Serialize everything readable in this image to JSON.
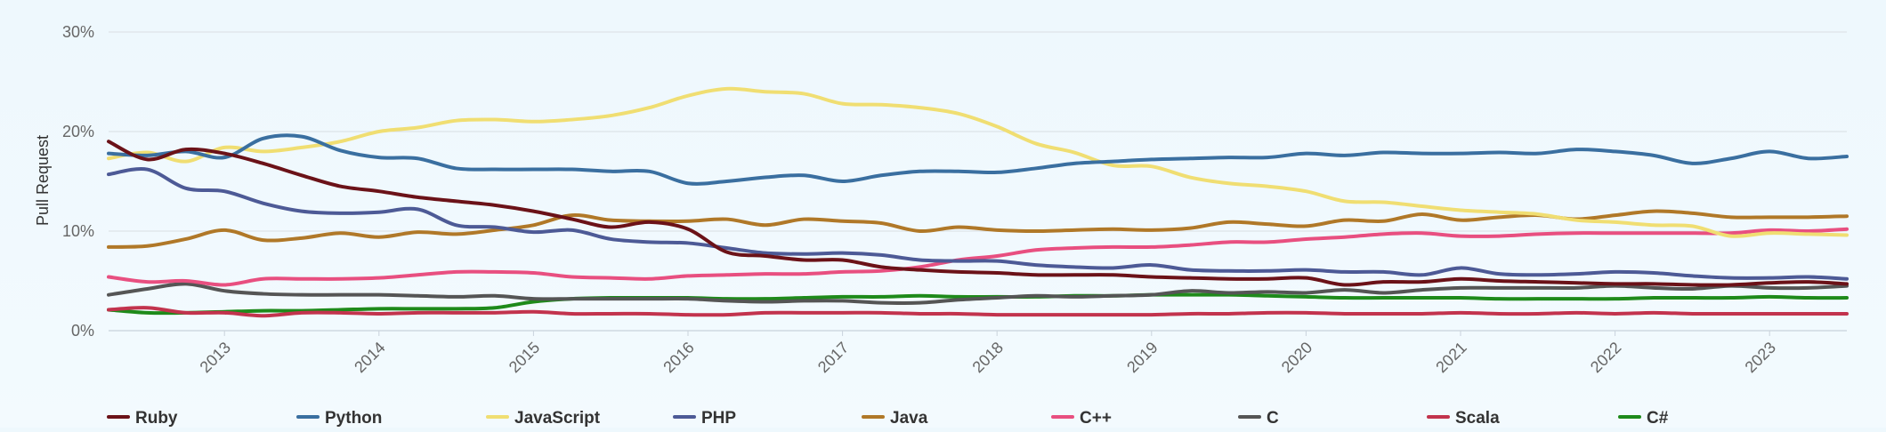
{
  "chart_data": {
    "type": "line",
    "title": "",
    "xlabel": "",
    "ylabel": "Pull Request",
    "ylim": [
      0,
      30
    ],
    "ytick_labels": [
      "0%",
      "10%",
      "20%",
      "30%"
    ],
    "xtick_labels": [
      "2013",
      "2014",
      "2015",
      "2016",
      "2017",
      "2018",
      "2019",
      "2020",
      "2021",
      "2022",
      "2023"
    ],
    "xlim": [
      2012.25,
      2023.5
    ],
    "grid": true,
    "legend_position": "bottom",
    "x": [
      2012.25,
      2012.5,
      2012.75,
      2013.0,
      2013.25,
      2013.5,
      2013.75,
      2014.0,
      2014.25,
      2014.5,
      2014.75,
      2015.0,
      2015.25,
      2015.5,
      2015.75,
      2016.0,
      2016.25,
      2016.5,
      2016.75,
      2017.0,
      2017.25,
      2017.5,
      2017.75,
      2018.0,
      2018.25,
      2018.5,
      2018.75,
      2019.0,
      2019.25,
      2019.5,
      2019.75,
      2020.0,
      2020.25,
      2020.5,
      2020.75,
      2021.0,
      2021.25,
      2021.5,
      2021.75,
      2022.0,
      2022.25,
      2022.5,
      2022.75,
      2023.0,
      2023.25,
      2023.5
    ],
    "series": [
      {
        "name": "Ruby",
        "color": "#6b1218",
        "values": [
          19.0,
          17.2,
          18.2,
          17.8,
          16.8,
          15.6,
          14.5,
          14.0,
          13.4,
          13.0,
          12.6,
          12.0,
          11.2,
          10.4,
          10.9,
          10.2,
          7.9,
          7.5,
          7.1,
          7.1,
          6.4,
          6.1,
          5.9,
          5.8,
          5.6,
          5.6,
          5.6,
          5.4,
          5.3,
          5.2,
          5.2,
          5.3,
          4.6,
          4.9,
          4.9,
          5.2,
          5.0,
          4.9,
          4.8,
          4.7,
          4.7,
          4.6,
          4.6,
          4.8,
          4.9,
          4.7
        ]
      },
      {
        "name": "Python",
        "color": "#3a6fa0",
        "values": [
          17.8,
          17.6,
          18.0,
          17.4,
          19.3,
          19.5,
          18.1,
          17.4,
          17.3,
          16.3,
          16.2,
          16.2,
          16.2,
          16.0,
          16.0,
          14.8,
          15.0,
          15.4,
          15.6,
          15.0,
          15.6,
          16.0,
          16.0,
          15.9,
          16.3,
          16.8,
          17.0,
          17.2,
          17.3,
          17.4,
          17.4,
          17.8,
          17.6,
          17.9,
          17.8,
          17.8,
          17.9,
          17.8,
          18.2,
          18.0,
          17.6,
          16.8,
          17.3,
          18.0,
          17.3,
          17.5
        ]
      },
      {
        "name": "JavaScript",
        "color": "#f0de72",
        "values": [
          17.3,
          17.9,
          17.0,
          18.4,
          18.0,
          18.4,
          19.0,
          20.0,
          20.4,
          21.1,
          21.2,
          21.0,
          21.2,
          21.6,
          22.4,
          23.6,
          24.3,
          24.0,
          23.8,
          22.8,
          22.7,
          22.4,
          21.8,
          20.5,
          18.8,
          17.9,
          16.6,
          16.5,
          15.4,
          14.8,
          14.5,
          14.0,
          13.0,
          12.9,
          12.5,
          12.1,
          11.9,
          11.7,
          11.1,
          10.9,
          10.6,
          10.5,
          9.5,
          9.8,
          9.7,
          9.6
        ]
      },
      {
        "name": "PHP",
        "color": "#4d5a96",
        "values": [
          15.7,
          16.2,
          14.3,
          14.0,
          12.8,
          12.0,
          11.8,
          11.9,
          12.2,
          10.6,
          10.4,
          9.9,
          10.1,
          9.2,
          8.9,
          8.8,
          8.3,
          7.8,
          7.7,
          7.8,
          7.6,
          7.1,
          7.0,
          7.0,
          6.6,
          6.4,
          6.3,
          6.6,
          6.1,
          6.0,
          6.0,
          6.1,
          5.9,
          5.9,
          5.6,
          6.3,
          5.7,
          5.6,
          5.7,
          5.9,
          5.8,
          5.5,
          5.3,
          5.3,
          5.4,
          5.2
        ]
      },
      {
        "name": "Java",
        "color": "#b07828",
        "values": [
          8.4,
          8.5,
          9.2,
          10.1,
          9.1,
          9.3,
          9.8,
          9.4,
          9.9,
          9.7,
          10.1,
          10.6,
          11.6,
          11.1,
          11.0,
          11.0,
          11.2,
          10.6,
          11.2,
          11.0,
          10.8,
          10.0,
          10.4,
          10.1,
          10.0,
          10.1,
          10.2,
          10.1,
          10.3,
          10.9,
          10.7,
          10.5,
          11.1,
          11.0,
          11.7,
          11.1,
          11.4,
          11.6,
          11.2,
          11.6,
          12.0,
          11.8,
          11.4,
          11.4,
          11.4,
          11.5
        ]
      },
      {
        "name": "C++",
        "color": "#e84f80",
        "values": [
          5.4,
          4.9,
          5.0,
          4.6,
          5.2,
          5.2,
          5.2,
          5.3,
          5.6,
          5.9,
          5.9,
          5.8,
          5.4,
          5.3,
          5.2,
          5.5,
          5.6,
          5.7,
          5.7,
          5.9,
          6.0,
          6.4,
          7.1,
          7.5,
          8.1,
          8.3,
          8.4,
          8.4,
          8.6,
          8.9,
          8.9,
          9.2,
          9.4,
          9.7,
          9.8,
          9.5,
          9.5,
          9.7,
          9.8,
          9.8,
          9.8,
          9.8,
          9.8,
          10.1,
          10.0,
          10.2
        ]
      },
      {
        "name": "C",
        "color": "#555555",
        "values": [
          3.6,
          4.2,
          4.7,
          4.0,
          3.7,
          3.6,
          3.6,
          3.6,
          3.5,
          3.4,
          3.5,
          3.2,
          3.2,
          3.2,
          3.2,
          3.2,
          3.0,
          2.9,
          3.0,
          3.0,
          2.8,
          2.8,
          3.1,
          3.3,
          3.5,
          3.4,
          3.5,
          3.6,
          4.0,
          3.8,
          3.9,
          3.8,
          4.1,
          3.8,
          4.1,
          4.3,
          4.3,
          4.3,
          4.3,
          4.5,
          4.3,
          4.2,
          4.5,
          4.3,
          4.3,
          4.5
        ]
      },
      {
        "name": "Scala",
        "color": "#c2334d",
        "values": [
          2.1,
          2.3,
          1.8,
          1.8,
          1.5,
          1.8,
          1.8,
          1.7,
          1.8,
          1.8,
          1.8,
          1.9,
          1.7,
          1.7,
          1.7,
          1.6,
          1.6,
          1.8,
          1.8,
          1.8,
          1.8,
          1.7,
          1.7,
          1.6,
          1.6,
          1.6,
          1.6,
          1.6,
          1.7,
          1.7,
          1.8,
          1.8,
          1.7,
          1.7,
          1.7,
          1.8,
          1.7,
          1.7,
          1.8,
          1.7,
          1.8,
          1.7,
          1.7,
          1.7,
          1.7,
          1.7
        ]
      },
      {
        "name": "C#",
        "color": "#1e8a1a",
        "values": [
          2.1,
          1.8,
          1.8,
          1.9,
          2.0,
          2.0,
          2.1,
          2.2,
          2.2,
          2.2,
          2.3,
          2.9,
          3.2,
          3.3,
          3.3,
          3.3,
          3.2,
          3.2,
          3.3,
          3.4,
          3.4,
          3.5,
          3.4,
          3.4,
          3.4,
          3.5,
          3.5,
          3.6,
          3.6,
          3.6,
          3.5,
          3.4,
          3.3,
          3.3,
          3.3,
          3.3,
          3.2,
          3.2,
          3.2,
          3.2,
          3.3,
          3.3,
          3.3,
          3.4,
          3.3,
          3.3
        ]
      }
    ]
  }
}
